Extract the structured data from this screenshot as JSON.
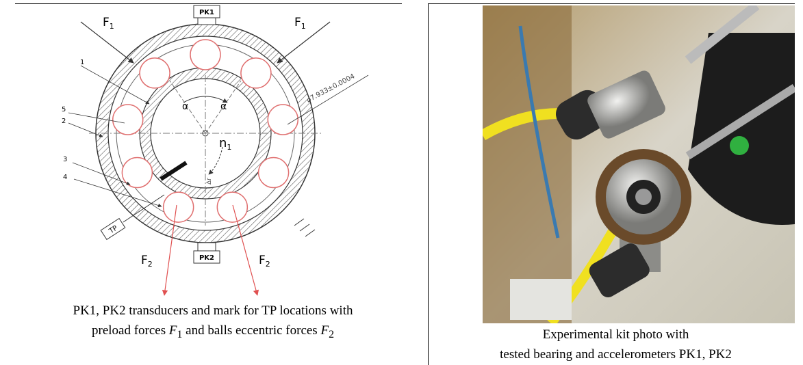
{
  "figure": {
    "left_panel": {
      "diagram": {
        "transducers": [
          "PK1",
          "PK2"
        ],
        "forces": [
          {
            "symbol": "F",
            "subscript": "1"
          },
          {
            "symbol": "F",
            "subscript": "1"
          },
          {
            "symbol": "F",
            "subscript": "2"
          },
          {
            "symbol": "F",
            "subscript": "2"
          }
        ],
        "part_numbers": [
          "1",
          "5",
          "2",
          "3",
          "4"
        ],
        "angles": [
          "α",
          "α"
        ],
        "rotation": {
          "symbol": "n",
          "subscript": "1"
        },
        "mark": "TP",
        "dimension": "⌀7.933±0.0004",
        "clearance": "Δr"
      },
      "caption": {
        "line1": "PK1, PK2 transducers and mark for TP locations with",
        "line2": [
          "preload forces ",
          {
            "symbol": "F",
            "subscript": "1"
          },
          " and balls eccentric forces ",
          {
            "symbol": "F",
            "subscript": "2"
          }
        ]
      }
    },
    "right_panel": {
      "caption": [
        "Experimental kit photo with",
        "tested bearing and accelerometers PK1, PK2"
      ]
    }
  }
}
